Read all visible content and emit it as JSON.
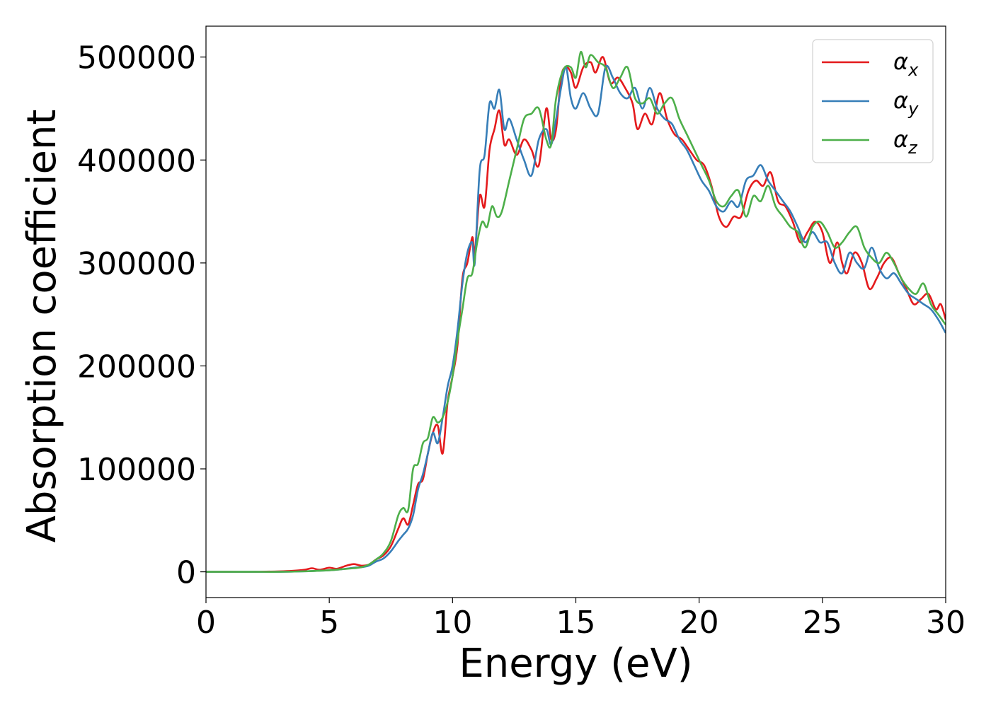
{
  "chart_data": {
    "type": "line",
    "title": "",
    "xlabel": "Energy (eV)",
    "ylabel": "Absorption coefficient",
    "xlim": [
      0,
      30
    ],
    "ylim": [
      -25000,
      530000
    ],
    "xticks": [
      0,
      5,
      10,
      15,
      20,
      25,
      30
    ],
    "xtick_labels": [
      "0",
      "5",
      "10",
      "15",
      "20",
      "25",
      "30"
    ],
    "yticks": [
      0,
      100000,
      200000,
      300000,
      400000,
      500000
    ],
    "ytick_labels": [
      "0",
      "100000",
      "200000",
      "300000",
      "400000",
      "500000"
    ],
    "grid": false,
    "legend_position": "top-right",
    "series": [
      {
        "name": "αx",
        "legend_main": "α",
        "legend_sub": "x",
        "color": "#e41a1c",
        "points": [
          [
            0,
            0
          ],
          [
            1,
            0
          ],
          [
            2,
            0
          ],
          [
            3,
            500
          ],
          [
            3.5,
            1000
          ],
          [
            4,
            2000
          ],
          [
            4.3,
            3500
          ],
          [
            4.6,
            2000
          ],
          [
            5,
            4000
          ],
          [
            5.3,
            3000
          ],
          [
            5.7,
            6000
          ],
          [
            6,
            7500
          ],
          [
            6.3,
            6000
          ],
          [
            6.6,
            7000
          ],
          [
            6.9,
            12000
          ],
          [
            7.2,
            16000
          ],
          [
            7.5,
            25000
          ],
          [
            7.8,
            42000
          ],
          [
            8,
            52000
          ],
          [
            8.2,
            46000
          ],
          [
            8.4,
            65000
          ],
          [
            8.6,
            85000
          ],
          [
            8.8,
            90000
          ],
          [
            9,
            115000
          ],
          [
            9.2,
            135000
          ],
          [
            9.4,
            142000
          ],
          [
            9.6,
            115000
          ],
          [
            9.8,
            165000
          ],
          [
            10,
            190000
          ],
          [
            10.2,
            220000
          ],
          [
            10.4,
            285000
          ],
          [
            10.6,
            300000
          ],
          [
            10.8,
            325000
          ],
          [
            10.9,
            310000
          ],
          [
            11.1,
            365000
          ],
          [
            11.3,
            355000
          ],
          [
            11.5,
            410000
          ],
          [
            11.7,
            430000
          ],
          [
            11.9,
            448000
          ],
          [
            12.1,
            415000
          ],
          [
            12.3,
            420000
          ],
          [
            12.6,
            405000
          ],
          [
            12.9,
            420000
          ],
          [
            13.2,
            410000
          ],
          [
            13.5,
            395000
          ],
          [
            13.8,
            450000
          ],
          [
            14,
            420000
          ],
          [
            14.2,
            430000
          ],
          [
            14.4,
            480000
          ],
          [
            14.6,
            490000
          ],
          [
            14.8,
            485000
          ],
          [
            15,
            470000
          ],
          [
            15.3,
            490000
          ],
          [
            15.6,
            495000
          ],
          [
            15.8,
            485000
          ],
          [
            16.1,
            500000
          ],
          [
            16.4,
            475000
          ],
          [
            16.7,
            480000
          ],
          [
            17,
            470000
          ],
          [
            17.3,
            455000
          ],
          [
            17.5,
            430000
          ],
          [
            17.8,
            445000
          ],
          [
            18.1,
            435000
          ],
          [
            18.4,
            465000
          ],
          [
            18.7,
            440000
          ],
          [
            19,
            425000
          ],
          [
            19.3,
            420000
          ],
          [
            19.6,
            410000
          ],
          [
            19.9,
            400000
          ],
          [
            20.2,
            395000
          ],
          [
            20.5,
            375000
          ],
          [
            20.8,
            345000
          ],
          [
            21.1,
            335000
          ],
          [
            21.4,
            345000
          ],
          [
            21.7,
            345000
          ],
          [
            22,
            370000
          ],
          [
            22.3,
            380000
          ],
          [
            22.6,
            375000
          ],
          [
            22.9,
            388000
          ],
          [
            23.2,
            360000
          ],
          [
            23.5,
            355000
          ],
          [
            23.8,
            340000
          ],
          [
            24.1,
            320000
          ],
          [
            24.4,
            330000
          ],
          [
            24.7,
            340000
          ],
          [
            25,
            330000
          ],
          [
            25.3,
            300000
          ],
          [
            25.6,
            320000
          ],
          [
            25.8,
            300000
          ],
          [
            26,
            290000
          ],
          [
            26.3,
            310000
          ],
          [
            26.6,
            300000
          ],
          [
            26.9,
            275000
          ],
          [
            27.2,
            285000
          ],
          [
            27.5,
            300000
          ],
          [
            27.8,
            305000
          ],
          [
            28.1,
            290000
          ],
          [
            28.4,
            275000
          ],
          [
            28.7,
            260000
          ],
          [
            29,
            265000
          ],
          [
            29.3,
            270000
          ],
          [
            29.6,
            255000
          ],
          [
            29.8,
            260000
          ],
          [
            30,
            245000
          ]
        ]
      },
      {
        "name": "αy",
        "legend_main": "α",
        "legend_sub": "y",
        "color": "#377eb8",
        "points": [
          [
            0,
            0
          ],
          [
            1,
            0
          ],
          [
            2,
            0
          ],
          [
            3,
            0
          ],
          [
            4,
            500
          ],
          [
            4.5,
            1000
          ],
          [
            5,
            1500
          ],
          [
            5.5,
            2500
          ],
          [
            6,
            4000
          ],
          [
            6.3,
            4500
          ],
          [
            6.6,
            6000
          ],
          [
            6.9,
            10000
          ],
          [
            7.2,
            13000
          ],
          [
            7.5,
            20000
          ],
          [
            7.8,
            30000
          ],
          [
            8,
            36000
          ],
          [
            8.2,
            42000
          ],
          [
            8.4,
            55000
          ],
          [
            8.6,
            80000
          ],
          [
            8.8,
            95000
          ],
          [
            9,
            115000
          ],
          [
            9.2,
            135000
          ],
          [
            9.4,
            125000
          ],
          [
            9.6,
            150000
          ],
          [
            9.8,
            180000
          ],
          [
            10,
            200000
          ],
          [
            10.2,
            235000
          ],
          [
            10.4,
            280000
          ],
          [
            10.6,
            310000
          ],
          [
            10.8,
            320000
          ],
          [
            10.9,
            300000
          ],
          [
            11.1,
            390000
          ],
          [
            11.3,
            405000
          ],
          [
            11.5,
            455000
          ],
          [
            11.7,
            450000
          ],
          [
            11.9,
            468000
          ],
          [
            12.1,
            430000
          ],
          [
            12.3,
            440000
          ],
          [
            12.6,
            420000
          ],
          [
            12.9,
            400000
          ],
          [
            13.2,
            385000
          ],
          [
            13.5,
            420000
          ],
          [
            13.8,
            430000
          ],
          [
            14,
            415000
          ],
          [
            14.2,
            440000
          ],
          [
            14.4,
            470000
          ],
          [
            14.6,
            490000
          ],
          [
            14.8,
            460000
          ],
          [
            15,
            450000
          ],
          [
            15.3,
            465000
          ],
          [
            15.6,
            450000
          ],
          [
            15.9,
            445000
          ],
          [
            16.2,
            490000
          ],
          [
            16.5,
            480000
          ],
          [
            16.8,
            465000
          ],
          [
            17.1,
            460000
          ],
          [
            17.4,
            470000
          ],
          [
            17.7,
            450000
          ],
          [
            18,
            470000
          ],
          [
            18.3,
            450000
          ],
          [
            18.6,
            440000
          ],
          [
            18.9,
            435000
          ],
          [
            19.2,
            420000
          ],
          [
            19.5,
            410000
          ],
          [
            19.8,
            395000
          ],
          [
            20.1,
            380000
          ],
          [
            20.4,
            370000
          ],
          [
            20.7,
            355000
          ],
          [
            21,
            350000
          ],
          [
            21.3,
            360000
          ],
          [
            21.6,
            355000
          ],
          [
            21.9,
            380000
          ],
          [
            22.2,
            385000
          ],
          [
            22.5,
            395000
          ],
          [
            22.8,
            380000
          ],
          [
            23.1,
            370000
          ],
          [
            23.4,
            360000
          ],
          [
            23.7,
            350000
          ],
          [
            24,
            335000
          ],
          [
            24.3,
            320000
          ],
          [
            24.6,
            330000
          ],
          [
            24.9,
            320000
          ],
          [
            25.2,
            320000
          ],
          [
            25.5,
            300000
          ],
          [
            25.8,
            290000
          ],
          [
            26.1,
            310000
          ],
          [
            26.4,
            300000
          ],
          [
            26.7,
            295000
          ],
          [
            27,
            315000
          ],
          [
            27.3,
            295000
          ],
          [
            27.6,
            285000
          ],
          [
            27.9,
            290000
          ],
          [
            28.2,
            280000
          ],
          [
            28.5,
            270000
          ],
          [
            28.8,
            265000
          ],
          [
            29.1,
            260000
          ],
          [
            29.4,
            255000
          ],
          [
            29.7,
            245000
          ],
          [
            30,
            232000
          ]
        ]
      },
      {
        "name": "αz",
        "legend_main": "α",
        "legend_sub": "z",
        "color": "#4daf4a",
        "points": [
          [
            0,
            0
          ],
          [
            1,
            0
          ],
          [
            2,
            0
          ],
          [
            3,
            0
          ],
          [
            4,
            500
          ],
          [
            4.5,
            1000
          ],
          [
            5,
            1500
          ],
          [
            5.5,
            2500
          ],
          [
            6,
            3500
          ],
          [
            6.3,
            4500
          ],
          [
            6.6,
            7000
          ],
          [
            6.9,
            12000
          ],
          [
            7.2,
            18000
          ],
          [
            7.5,
            30000
          ],
          [
            7.8,
            55000
          ],
          [
            8,
            62000
          ],
          [
            8.2,
            60000
          ],
          [
            8.4,
            100000
          ],
          [
            8.6,
            105000
          ],
          [
            8.8,
            125000
          ],
          [
            9,
            130000
          ],
          [
            9.2,
            150000
          ],
          [
            9.4,
            145000
          ],
          [
            9.6,
            150000
          ],
          [
            9.8,
            165000
          ],
          [
            10,
            190000
          ],
          [
            10.2,
            225000
          ],
          [
            10.4,
            255000
          ],
          [
            10.6,
            285000
          ],
          [
            10.8,
            290000
          ],
          [
            11,
            320000
          ],
          [
            11.2,
            340000
          ],
          [
            11.4,
            335000
          ],
          [
            11.6,
            355000
          ],
          [
            11.8,
            345000
          ],
          [
            12,
            350000
          ],
          [
            12.3,
            380000
          ],
          [
            12.6,
            410000
          ],
          [
            12.9,
            440000
          ],
          [
            13.2,
            445000
          ],
          [
            13.5,
            450000
          ],
          [
            13.8,
            420000
          ],
          [
            14,
            415000
          ],
          [
            14.2,
            460000
          ],
          [
            14.5,
            488000
          ],
          [
            14.8,
            490000
          ],
          [
            15,
            480000
          ],
          [
            15.2,
            505000
          ],
          [
            15.4,
            490000
          ],
          [
            15.6,
            502000
          ],
          [
            15.9,
            495000
          ],
          [
            16.2,
            490000
          ],
          [
            16.5,
            470000
          ],
          [
            16.8,
            480000
          ],
          [
            17.1,
            490000
          ],
          [
            17.4,
            460000
          ],
          [
            17.7,
            455000
          ],
          [
            18,
            460000
          ],
          [
            18.3,
            445000
          ],
          [
            18.6,
            455000
          ],
          [
            18.9,
            460000
          ],
          [
            19.2,
            440000
          ],
          [
            19.5,
            425000
          ],
          [
            19.8,
            410000
          ],
          [
            20.1,
            395000
          ],
          [
            20.4,
            380000
          ],
          [
            20.7,
            360000
          ],
          [
            21,
            355000
          ],
          [
            21.3,
            365000
          ],
          [
            21.6,
            370000
          ],
          [
            21.9,
            345000
          ],
          [
            22.2,
            365000
          ],
          [
            22.5,
            360000
          ],
          [
            22.8,
            375000
          ],
          [
            23.1,
            355000
          ],
          [
            23.4,
            345000
          ],
          [
            23.7,
            335000
          ],
          [
            24,
            330000
          ],
          [
            24.3,
            315000
          ],
          [
            24.6,
            335000
          ],
          [
            24.9,
            340000
          ],
          [
            25.2,
            330000
          ],
          [
            25.5,
            315000
          ],
          [
            25.8,
            320000
          ],
          [
            26.1,
            330000
          ],
          [
            26.4,
            335000
          ],
          [
            26.7,
            315000
          ],
          [
            27,
            305000
          ],
          [
            27.3,
            300000
          ],
          [
            27.6,
            310000
          ],
          [
            27.9,
            300000
          ],
          [
            28.2,
            285000
          ],
          [
            28.5,
            275000
          ],
          [
            28.8,
            270000
          ],
          [
            29.1,
            280000
          ],
          [
            29.4,
            260000
          ],
          [
            29.7,
            250000
          ],
          [
            30,
            240000
          ]
        ]
      }
    ]
  }
}
